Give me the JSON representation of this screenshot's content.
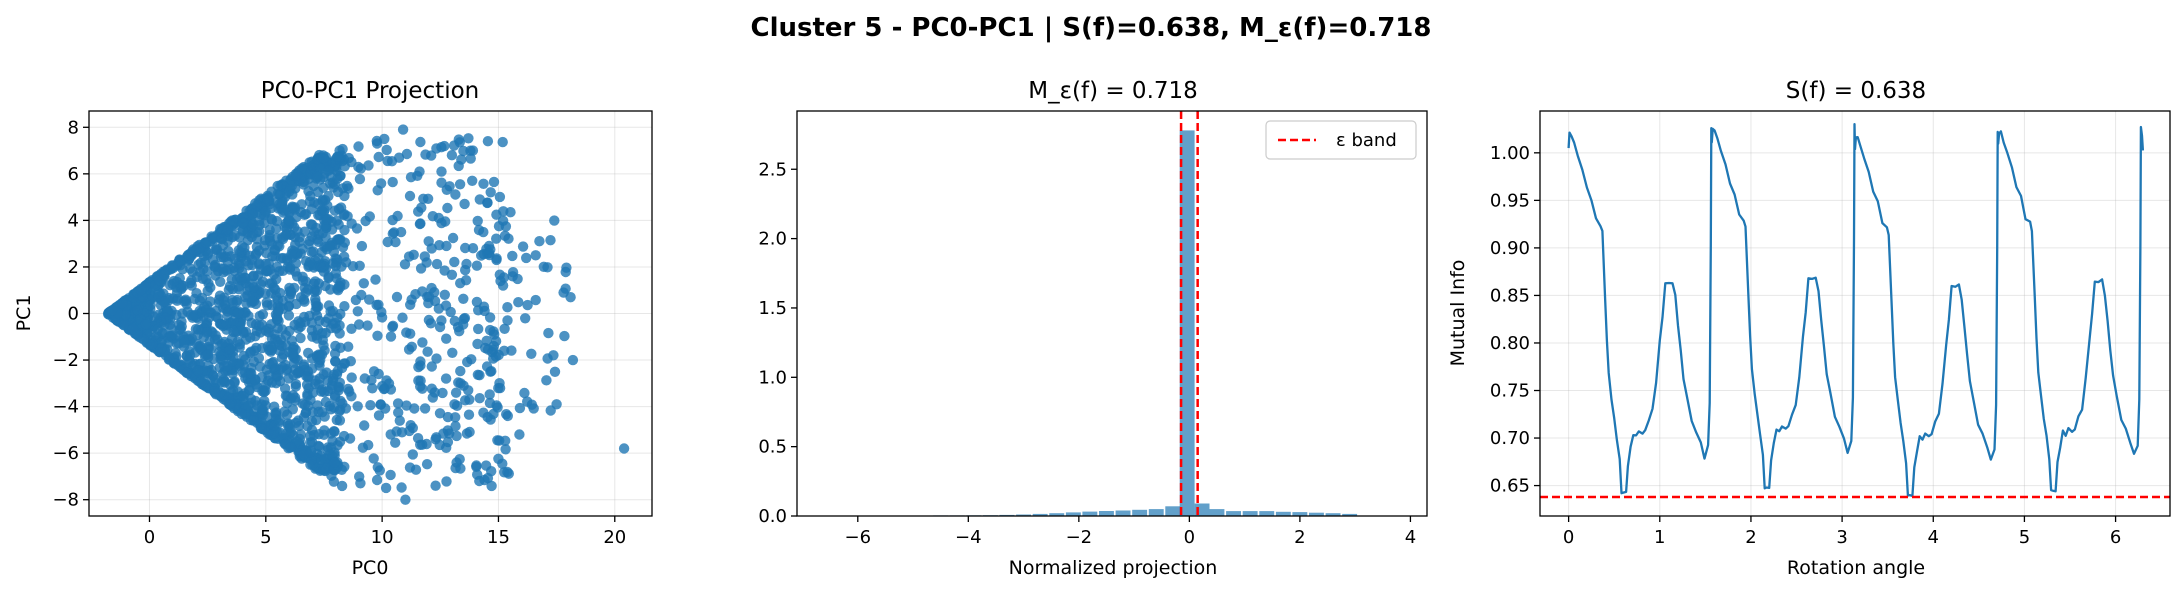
{
  "figure": {
    "suptitle": "Cluster 5 - PC0-PC1 | S(f)=0.638, M_ε(f)=0.718"
  },
  "colors": {
    "primary": "#1f77b4",
    "reference": "#ff0000"
  },
  "chart_data": [
    {
      "type": "scatter",
      "title": "PC0-PC1 Projection",
      "xlabel": "PC0",
      "ylabel": "PC1",
      "xlim": [
        -2.6,
        21.6
      ],
      "ylim": [
        -8.7,
        8.7
      ],
      "xticks": [
        0,
        5,
        10,
        15,
        20
      ],
      "yticks": [
        -8,
        -6,
        -4,
        -2,
        0,
        2,
        4,
        6,
        8
      ],
      "grid": true,
      "point_count_estimate": 2000,
      "points": [
        [
          20.4,
          -5.8
        ],
        [
          18.2,
          -2.0
        ],
        [
          18.1,
          0.7
        ],
        [
          17.8,
          0.9
        ],
        [
          17.5,
          -3.9
        ],
        [
          16.6,
          2.5
        ],
        [
          15.9,
          -5.2
        ],
        [
          15.4,
          -4.4
        ],
        [
          14.2,
          4.9
        ],
        [
          13.9,
          7.0
        ],
        [
          10.9,
          7.9
        ],
        [
          12.3,
          -7.4
        ],
        [
          11.0,
          -8.0
        ],
        [
          13.0,
          6.8
        ],
        [
          13.2,
          -6.4
        ],
        [
          14.6,
          2.9
        ],
        [
          15.2,
          1.2
        ],
        [
          14.8,
          -1.4
        ],
        [
          13.5,
          -3.1
        ],
        [
          12.0,
          3.1
        ]
      ],
      "structure": "cone opening to the right from apex near (-1.8, 0); boundary |PC1| ≈ 0.75·(PC0 + 1.8) up to PC0 ≈ 8, dense core inside, sparse scatter beyond"
    },
    {
      "type": "bar",
      "title": "M_ε(f) = 0.718",
      "xlabel": "Normalized projection",
      "ylabel": "",
      "xlim": [
        -7.1,
        4.3
      ],
      "ylim": [
        0,
        2.92
      ],
      "xticks": [
        -6,
        -4,
        -2,
        0,
        2,
        4
      ],
      "yticks": [
        0.0,
        0.5,
        1.0,
        1.5,
        2.0,
        2.5
      ],
      "grid": false,
      "bin_width": 0.27,
      "bins": [
        {
          "x": -6.9,
          "y": 0.003
        },
        {
          "x": -6.6,
          "y": 0.003
        },
        {
          "x": -6.3,
          "y": 0.003
        },
        {
          "x": -6.0,
          "y": 0.003
        },
        {
          "x": -5.7,
          "y": 0.003
        },
        {
          "x": -5.4,
          "y": 0.003
        },
        {
          "x": -5.1,
          "y": 0.003
        },
        {
          "x": -4.8,
          "y": 0.003
        },
        {
          "x": -4.5,
          "y": 0.004
        },
        {
          "x": -4.2,
          "y": 0.004
        },
        {
          "x": -3.9,
          "y": 0.005
        },
        {
          "x": -3.6,
          "y": 0.006
        },
        {
          "x": -3.3,
          "y": 0.008
        },
        {
          "x": -3.0,
          "y": 0.011
        },
        {
          "x": -2.7,
          "y": 0.015
        },
        {
          "x": -2.4,
          "y": 0.02
        },
        {
          "x": -2.1,
          "y": 0.026
        },
        {
          "x": -1.8,
          "y": 0.032
        },
        {
          "x": -1.5,
          "y": 0.036
        },
        {
          "x": -1.2,
          "y": 0.04
        },
        {
          "x": -0.9,
          "y": 0.045
        },
        {
          "x": -0.6,
          "y": 0.05
        },
        {
          "x": -0.3,
          "y": 0.07
        },
        {
          "x": -0.04,
          "y": 2.78
        },
        {
          "x": 0.23,
          "y": 0.09
        },
        {
          "x": 0.5,
          "y": 0.05
        },
        {
          "x": 0.8,
          "y": 0.035
        },
        {
          "x": 1.1,
          "y": 0.035
        },
        {
          "x": 1.4,
          "y": 0.035
        },
        {
          "x": 1.7,
          "y": 0.03
        },
        {
          "x": 2.0,
          "y": 0.028
        },
        {
          "x": 2.3,
          "y": 0.024
        },
        {
          "x": 2.6,
          "y": 0.02
        },
        {
          "x": 2.9,
          "y": 0.015
        },
        {
          "x": 3.2,
          "y": 0.003
        }
      ],
      "epsilon_lines": [
        -0.15,
        0.15
      ],
      "legend": {
        "label": "ε band",
        "position": "upper right"
      }
    },
    {
      "type": "line",
      "title": "S(f) = 0.638",
      "xlabel": "Rotation angle",
      "ylabel": "Mutual Info",
      "xlim": [
        -0.314,
        6.597
      ],
      "ylim": [
        0.618,
        1.044
      ],
      "xticks": [
        0,
        1,
        2,
        3,
        4,
        5,
        6
      ],
      "yticks": [
        0.65,
        0.7,
        0.75,
        0.8,
        0.85,
        0.9,
        0.95,
        1.0
      ],
      "grid": true,
      "reference_line": 0.638,
      "period": 1.5708,
      "cycle_profile": [
        [
          0.0,
          1.005
        ],
        [
          0.01,
          1.02
        ],
        [
          0.03,
          1.02
        ],
        [
          0.06,
          1.008
        ],
        [
          0.1,
          1.0
        ],
        [
          0.15,
          0.98
        ],
        [
          0.2,
          0.965
        ],
        [
          0.25,
          0.95
        ],
        [
          0.3,
          0.93
        ],
        [
          0.35,
          0.925
        ],
        [
          0.37,
          0.915
        ],
        [
          0.4,
          0.85
        ],
        [
          0.42,
          0.8
        ],
        [
          0.44,
          0.77
        ],
        [
          0.47,
          0.74
        ],
        [
          0.5,
          0.72
        ],
        [
          0.53,
          0.7
        ],
        [
          0.56,
          0.675
        ],
        [
          0.58,
          0.645
        ],
        [
          0.6,
          0.64
        ],
        [
          0.63,
          0.645
        ],
        [
          0.65,
          0.67
        ],
        [
          0.68,
          0.69
        ],
        [
          0.71,
          0.705
        ],
        [
          0.74,
          0.7
        ],
        [
          0.77,
          0.71
        ],
        [
          0.81,
          0.702
        ],
        [
          0.84,
          0.71
        ],
        [
          0.88,
          0.718
        ],
        [
          0.92,
          0.73
        ],
        [
          0.96,
          0.76
        ],
        [
          1.0,
          0.8
        ],
        [
          1.03,
          0.83
        ],
        [
          1.06,
          0.86
        ],
        [
          1.1,
          0.865
        ],
        [
          1.14,
          0.862
        ],
        [
          1.17,
          0.85
        ],
        [
          1.2,
          0.82
        ],
        [
          1.23,
          0.79
        ],
        [
          1.26,
          0.765
        ],
        [
          1.3,
          0.74
        ],
        [
          1.35,
          0.72
        ],
        [
          1.4,
          0.705
        ],
        [
          1.45,
          0.695
        ],
        [
          1.49,
          0.68
        ],
        [
          1.53,
          0.69
        ],
        [
          1.548,
          0.74
        ],
        [
          1.56,
          0.9
        ],
        [
          1.565,
          1.028
        ]
      ]
    }
  ]
}
